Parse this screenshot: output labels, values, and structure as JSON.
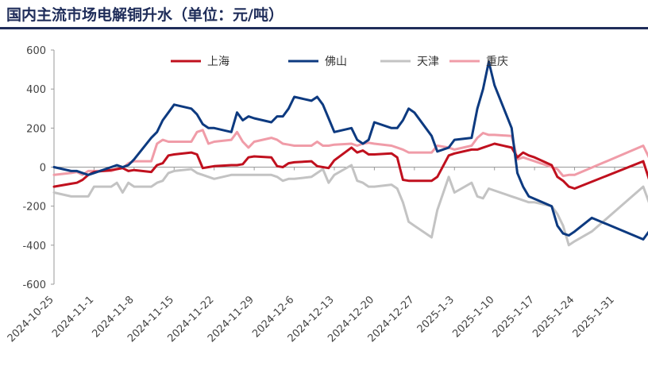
{
  "title": "国内主流市场电解铜升水（单位：元/吨）",
  "chart_data": {
    "type": "line",
    "title": "国内主流市场电解铜升水（单位：元/吨）",
    "ylim": [
      -600,
      600
    ],
    "yticks": [
      -600,
      -400,
      -200,
      0,
      200,
      400,
      600
    ],
    "xlim": [
      "2024-10-25",
      "2025-02-05"
    ],
    "xticks": [
      "2024-10-25",
      "2024-11-1",
      "2024-11-8",
      "2024-11-15",
      "2024-11-22",
      "2024-11-29",
      "2024-12-6",
      "2024-12-13",
      "2024-12-20",
      "2024-12-27",
      "2025-1-3",
      "2025-1-10",
      "2025-1-17",
      "2025-1-24",
      "2025-1-31"
    ],
    "grid": false,
    "legend": "top",
    "series": [
      {
        "name": "上海",
        "color": "#c0101e",
        "points": [
          [
            "2024-10-25",
            -100
          ],
          [
            "2024-10-28",
            -85
          ],
          [
            "2024-10-29",
            -80
          ],
          [
            "2024-10-30",
            -65
          ],
          [
            "2024-10-31",
            -40
          ],
          [
            "2024-11-1",
            -25
          ],
          [
            "2024-11-4",
            -15
          ],
          [
            "2024-11-5",
            -10
          ],
          [
            "2024-11-6",
            -5
          ],
          [
            "2024-11-7",
            -20
          ],
          [
            "2024-11-8",
            -15
          ],
          [
            "2024-11-11",
            -25
          ],
          [
            "2024-11-12",
            10
          ],
          [
            "2024-11-13",
            20
          ],
          [
            "2024-11-14",
            60
          ],
          [
            "2024-11-15",
            65
          ],
          [
            "2024-11-18",
            75
          ],
          [
            "2024-11-19",
            65
          ],
          [
            "2024-11-20",
            -5
          ],
          [
            "2024-11-21",
            0
          ],
          [
            "2024-11-22",
            5
          ],
          [
            "2024-11-25",
            10
          ],
          [
            "2024-11-26",
            10
          ],
          [
            "2024-11-27",
            15
          ],
          [
            "2024-11-28",
            50
          ],
          [
            "2024-11-29",
            55
          ],
          [
            "2024-12-2",
            50
          ],
          [
            "2024-12-3",
            5
          ],
          [
            "2024-12-4",
            0
          ],
          [
            "2024-12-5",
            20
          ],
          [
            "2024-12-6",
            25
          ],
          [
            "2024-12-9",
            30
          ],
          [
            "2024-12-10",
            5
          ],
          [
            "2024-12-11",
            0
          ],
          [
            "2024-12-12",
            -5
          ],
          [
            "2024-12-13",
            35
          ],
          [
            "2024-12-16",
            100
          ],
          [
            "2024-12-17",
            75
          ],
          [
            "2024-12-18",
            85
          ],
          [
            "2024-12-19",
            65
          ],
          [
            "2024-12-20",
            65
          ],
          [
            "2024-12-23",
            70
          ],
          [
            "2024-12-24",
            50
          ],
          [
            "2024-12-25",
            -65
          ],
          [
            "2024-12-26",
            -70
          ],
          [
            "2024-12-27",
            -70
          ],
          [
            "2024-12-30",
            -70
          ],
          [
            "2024-12-31",
            -50
          ],
          [
            "2025-1-2",
            60
          ],
          [
            "2025-1-3",
            70
          ],
          [
            "2025-1-6",
            90
          ],
          [
            "2025-1-7",
            90
          ],
          [
            "2025-1-8",
            100
          ],
          [
            "2025-1-9",
            110
          ],
          [
            "2025-1-10",
            120
          ],
          [
            "2025-1-13",
            100
          ],
          [
            "2025-1-14",
            50
          ],
          [
            "2025-1-15",
            75
          ],
          [
            "2025-1-16",
            60
          ],
          [
            "2025-1-17",
            50
          ],
          [
            "2025-1-20",
            10
          ],
          [
            "2025-1-21",
            -50
          ],
          [
            "2025-1-22",
            -70
          ],
          [
            "2025-1-23",
            -100
          ],
          [
            "2025-1-24",
            -110
          ],
          [
            "2025-2-5",
            30
          ],
          [
            "2025-2-6",
            -60
          ]
        ]
      },
      {
        "name": "佛山",
        "color": "#0d3a80",
        "points": [
          [
            "2024-10-25",
            0
          ],
          [
            "2024-10-28",
            -20
          ],
          [
            "2024-10-29",
            -20
          ],
          [
            "2024-10-30",
            -30
          ],
          [
            "2024-10-31",
            -40
          ],
          [
            "2024-11-1",
            -30
          ],
          [
            "2024-11-4",
            0
          ],
          [
            "2024-11-5",
            10
          ],
          [
            "2024-11-6",
            0
          ],
          [
            "2024-11-7",
            10
          ],
          [
            "2024-11-8",
            40
          ],
          [
            "2024-11-11",
            150
          ],
          [
            "2024-11-12",
            180
          ],
          [
            "2024-11-13",
            240
          ],
          [
            "2024-11-14",
            280
          ],
          [
            "2024-11-15",
            320
          ],
          [
            "2024-11-18",
            300
          ],
          [
            "2024-11-19",
            270
          ],
          [
            "2024-11-20",
            220
          ],
          [
            "2024-11-21",
            200
          ],
          [
            "2024-11-22",
            200
          ],
          [
            "2024-11-25",
            180
          ],
          [
            "2024-11-26",
            280
          ],
          [
            "2024-11-27",
            240
          ],
          [
            "2024-11-28",
            260
          ],
          [
            "2024-11-29",
            250
          ],
          [
            "2024-12-2",
            230
          ],
          [
            "2024-12-3",
            260
          ],
          [
            "2024-12-4",
            260
          ],
          [
            "2024-12-5",
            300
          ],
          [
            "2024-12-6",
            360
          ],
          [
            "2024-12-9",
            340
          ],
          [
            "2024-12-10",
            360
          ],
          [
            "2024-12-11",
            320
          ],
          [
            "2024-12-12",
            250
          ],
          [
            "2024-12-13",
            180
          ],
          [
            "2024-12-16",
            200
          ],
          [
            "2024-12-17",
            140
          ],
          [
            "2024-12-18",
            120
          ],
          [
            "2024-12-19",
            140
          ],
          [
            "2024-12-20",
            230
          ],
          [
            "2024-12-23",
            200
          ],
          [
            "2024-12-24",
            200
          ],
          [
            "2024-12-25",
            240
          ],
          [
            "2024-12-26",
            300
          ],
          [
            "2024-12-27",
            280
          ],
          [
            "2024-12-30",
            160
          ],
          [
            "2024-12-31",
            80
          ],
          [
            "2025-1-2",
            100
          ],
          [
            "2025-1-3",
            140
          ],
          [
            "2025-1-6",
            150
          ],
          [
            "2025-1-7",
            300
          ],
          [
            "2025-1-8",
            400
          ],
          [
            "2025-1-9",
            540
          ],
          [
            "2025-1-10",
            420
          ],
          [
            "2025-1-13",
            200
          ],
          [
            "2025-1-14",
            -30
          ],
          [
            "2025-1-15",
            -100
          ],
          [
            "2025-1-16",
            -150
          ],
          [
            "2025-1-20",
            -200
          ],
          [
            "2025-1-21",
            -300
          ],
          [
            "2025-1-22",
            -340
          ],
          [
            "2025-1-23",
            -350
          ],
          [
            "2025-1-24",
            -330
          ],
          [
            "2025-1-27",
            -260
          ],
          [
            "2025-2-5",
            -370
          ],
          [
            "2025-2-6",
            -330
          ]
        ]
      },
      {
        "name": "天津",
        "color": "#c3c3c3",
        "points": [
          [
            "2024-10-25",
            -130
          ],
          [
            "2024-10-28",
            -150
          ],
          [
            "2024-10-29",
            -150
          ],
          [
            "2024-10-30",
            -150
          ],
          [
            "2024-10-31",
            -150
          ],
          [
            "2024-11-1",
            -100
          ],
          [
            "2024-11-4",
            -100
          ],
          [
            "2024-11-5",
            -80
          ],
          [
            "2024-11-6",
            -130
          ],
          [
            "2024-11-7",
            -80
          ],
          [
            "2024-11-8",
            -100
          ],
          [
            "2024-11-11",
            -100
          ],
          [
            "2024-11-12",
            -80
          ],
          [
            "2024-11-13",
            -70
          ],
          [
            "2024-11-14",
            -30
          ],
          [
            "2024-11-15",
            -20
          ],
          [
            "2024-11-18",
            -10
          ],
          [
            "2024-11-19",
            -30
          ],
          [
            "2024-11-20",
            -40
          ],
          [
            "2024-11-21",
            -50
          ],
          [
            "2024-11-22",
            -60
          ],
          [
            "2024-11-25",
            -40
          ],
          [
            "2024-11-26",
            -40
          ],
          [
            "2024-11-27",
            -40
          ],
          [
            "2024-11-28",
            -40
          ],
          [
            "2024-11-29",
            -40
          ],
          [
            "2024-12-2",
            -40
          ],
          [
            "2024-12-3",
            -50
          ],
          [
            "2024-12-4",
            -70
          ],
          [
            "2024-12-5",
            -60
          ],
          [
            "2024-12-6",
            -60
          ],
          [
            "2024-12-9",
            -50
          ],
          [
            "2024-12-10",
            -30
          ],
          [
            "2024-12-11",
            -10
          ],
          [
            "2024-12-12",
            -80
          ],
          [
            "2024-12-13",
            -40
          ],
          [
            "2024-12-16",
            10
          ],
          [
            "2024-12-17",
            -70
          ],
          [
            "2024-12-18",
            -80
          ],
          [
            "2024-12-19",
            -100
          ],
          [
            "2024-12-20",
            -100
          ],
          [
            "2024-12-23",
            -90
          ],
          [
            "2024-12-24",
            -110
          ],
          [
            "2024-12-25",
            -180
          ],
          [
            "2024-12-26",
            -280
          ],
          [
            "2024-12-27",
            -300
          ],
          [
            "2024-12-30",
            -360
          ],
          [
            "2024-12-31",
            -220
          ],
          [
            "2025-1-2",
            -50
          ],
          [
            "2025-1-3",
            -130
          ],
          [
            "2025-1-6",
            -80
          ],
          [
            "2025-1-7",
            -150
          ],
          [
            "2025-1-8",
            -160
          ],
          [
            "2025-1-9",
            -110
          ],
          [
            "2025-1-10",
            -120
          ],
          [
            "2025-1-13",
            -150
          ],
          [
            "2025-1-14",
            -160
          ],
          [
            "2025-1-15",
            -170
          ],
          [
            "2025-1-16",
            -180
          ],
          [
            "2025-1-17",
            -180
          ],
          [
            "2025-1-20",
            -200
          ],
          [
            "2025-1-21",
            -240
          ],
          [
            "2025-1-22",
            -300
          ],
          [
            "2025-1-23",
            -400
          ],
          [
            "2025-1-24",
            -380
          ],
          [
            "2025-1-27",
            -330
          ],
          [
            "2025-2-5",
            -100
          ],
          [
            "2025-2-6",
            -180
          ]
        ]
      },
      {
        "name": "重庆",
        "color": "#f09ca8",
        "points": [
          [
            "2024-10-25",
            -40
          ],
          [
            "2024-10-28",
            -30
          ],
          [
            "2024-10-29",
            -25
          ],
          [
            "2024-10-30",
            -40
          ],
          [
            "2024-10-31",
            -20
          ],
          [
            "2024-11-1",
            -20
          ],
          [
            "2024-11-4",
            -20
          ],
          [
            "2024-11-5",
            -10
          ],
          [
            "2024-11-6",
            -5
          ],
          [
            "2024-11-7",
            20
          ],
          [
            "2024-11-8",
            30
          ],
          [
            "2024-11-11",
            30
          ],
          [
            "2024-11-12",
            120
          ],
          [
            "2024-11-13",
            140
          ],
          [
            "2024-11-14",
            130
          ],
          [
            "2024-11-15",
            130
          ],
          [
            "2024-11-18",
            130
          ],
          [
            "2024-11-19",
            180
          ],
          [
            "2024-11-20",
            190
          ],
          [
            "2024-11-21",
            120
          ],
          [
            "2024-11-22",
            130
          ],
          [
            "2024-11-25",
            140
          ],
          [
            "2024-11-26",
            180
          ],
          [
            "2024-11-27",
            130
          ],
          [
            "2024-11-28",
            100
          ],
          [
            "2024-11-29",
            130
          ],
          [
            "2024-12-2",
            150
          ],
          [
            "2024-12-3",
            140
          ],
          [
            "2024-12-4",
            120
          ],
          [
            "2024-12-5",
            115
          ],
          [
            "2024-12-6",
            110
          ],
          [
            "2024-12-9",
            110
          ],
          [
            "2024-12-10",
            130
          ],
          [
            "2024-12-11",
            110
          ],
          [
            "2024-12-12",
            110
          ],
          [
            "2024-12-13",
            115
          ],
          [
            "2024-12-16",
            120
          ],
          [
            "2024-12-17",
            110
          ],
          [
            "2024-12-18",
            120
          ],
          [
            "2024-12-19",
            125
          ],
          [
            "2024-12-20",
            120
          ],
          [
            "2024-12-23",
            110
          ],
          [
            "2024-12-24",
            100
          ],
          [
            "2024-12-25",
            90
          ],
          [
            "2024-12-26",
            75
          ],
          [
            "2024-12-27",
            75
          ],
          [
            "2024-12-30",
            75
          ],
          [
            "2024-12-31",
            110
          ],
          [
            "2025-1-2",
            100
          ],
          [
            "2025-1-3",
            90
          ],
          [
            "2025-1-6",
            110
          ],
          [
            "2025-1-7",
            150
          ],
          [
            "2025-1-8",
            175
          ],
          [
            "2025-1-9",
            165
          ],
          [
            "2025-1-10",
            165
          ],
          [
            "2025-1-13",
            160
          ],
          [
            "2025-1-14",
            40
          ],
          [
            "2025-1-15",
            50
          ],
          [
            "2025-1-16",
            40
          ],
          [
            "2025-1-17",
            30
          ],
          [
            "2025-1-20",
            0
          ],
          [
            "2025-1-21",
            -10
          ],
          [
            "2025-1-22",
            -45
          ],
          [
            "2025-1-23",
            -40
          ],
          [
            "2025-1-24",
            -40
          ],
          [
            "2025-2-5",
            110
          ],
          [
            "2025-2-6",
            50
          ]
        ]
      }
    ]
  }
}
